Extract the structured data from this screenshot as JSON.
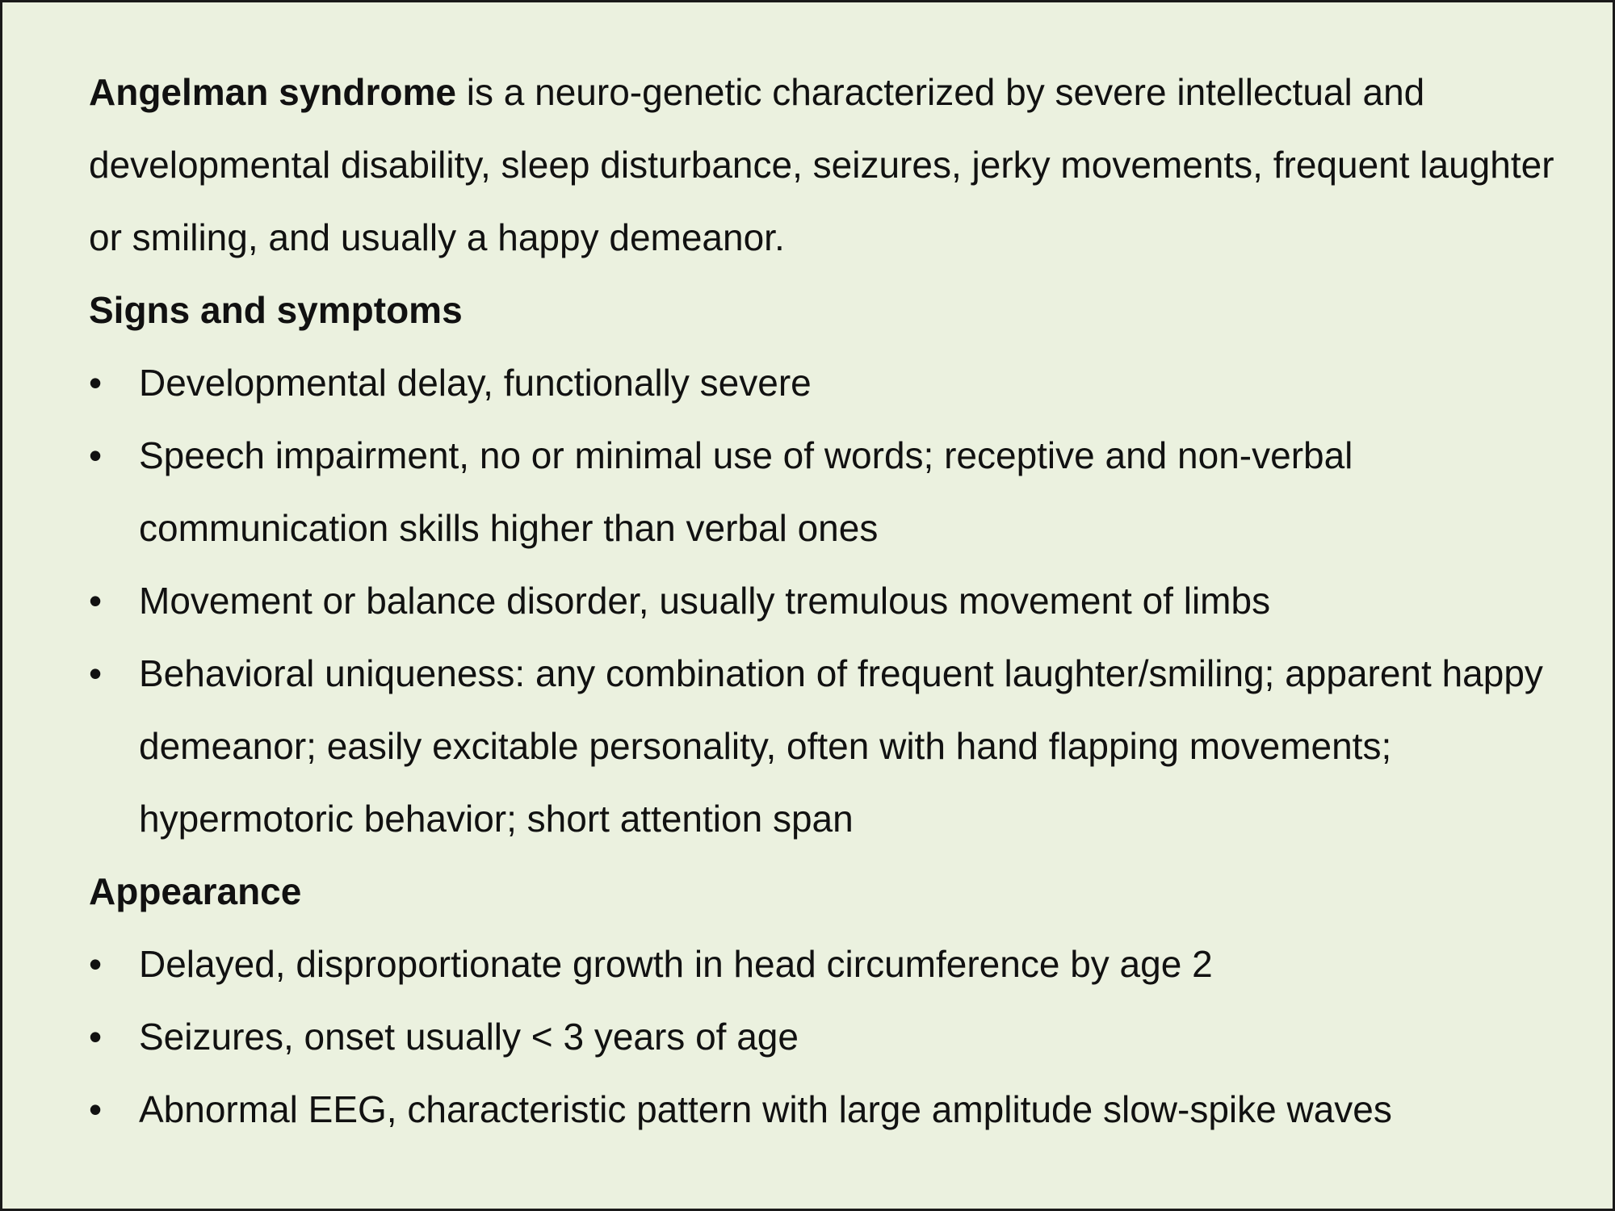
{
  "intro": {
    "term": "Angelman syndrome",
    "text": " is a neuro-genetic characterized by severe intellectual and developmental disability, sleep disturbance, seizures, jerky movements, frequent laughter or smiling, and usually a happy demeanor."
  },
  "bullet_glyph": "•",
  "sections": [
    {
      "heading": "Signs and symptoms",
      "items": [
        "Developmental delay, functionally severe",
        "Speech impairment, no or minimal use of words; receptive and non-verbal communication skills higher than verbal ones",
        "Movement or balance disorder, usually tremulous movement of limbs",
        "Behavioral uniqueness: any combination of frequent laughter/smiling; apparent happy demeanor; easily excitable personality, often with hand flapping movements; hypermotoric behavior; short attention span"
      ]
    },
    {
      "heading": "Appearance",
      "items": [
        "Delayed, disproportionate growth in head circumference by age 2",
        "Seizures, onset usually < 3 years of age",
        "Abnormal EEG, characteristic pattern with large amplitude slow-spike waves"
      ]
    }
  ]
}
